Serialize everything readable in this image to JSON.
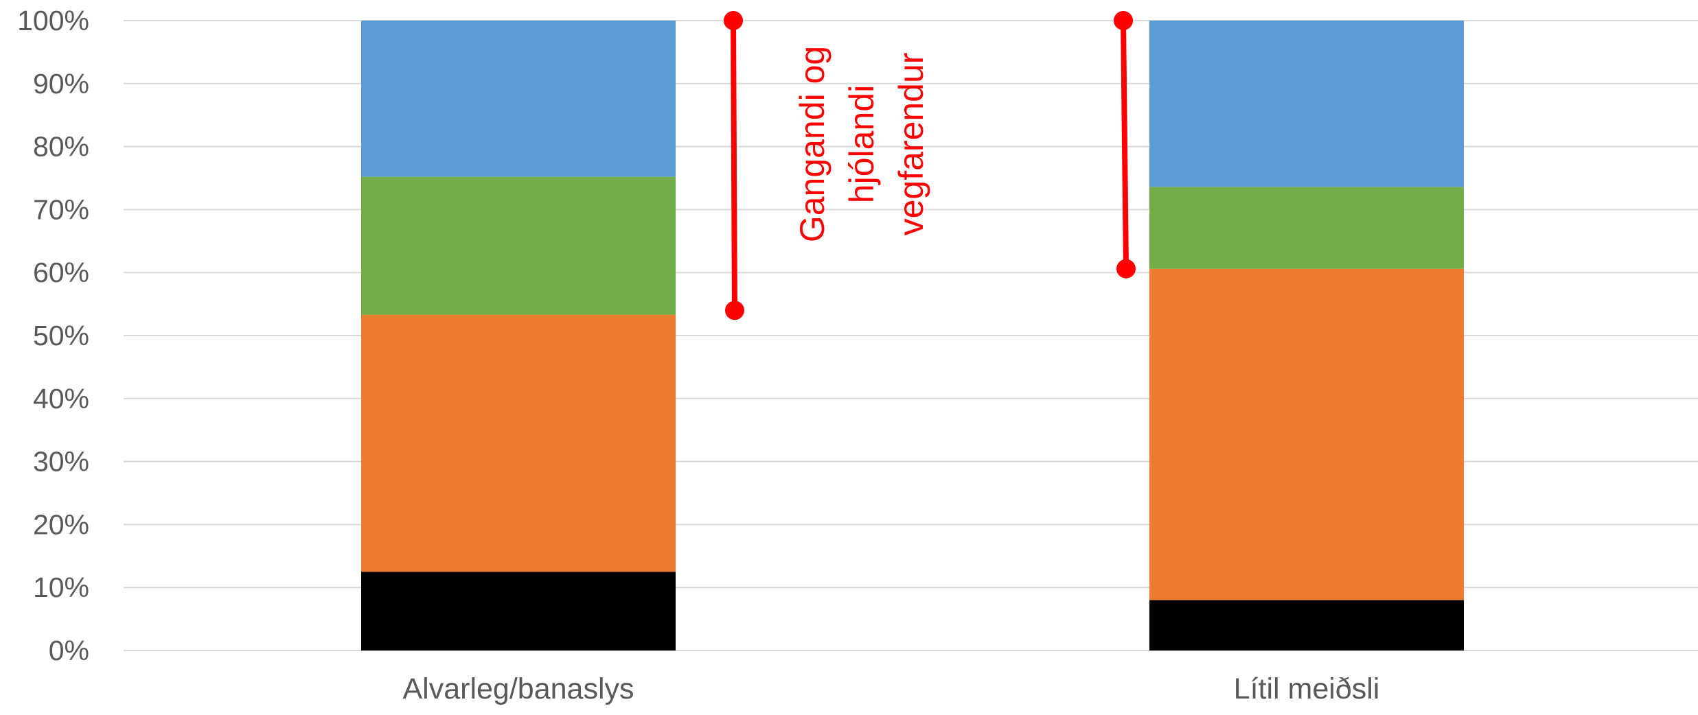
{
  "chart_data": {
    "type": "bar",
    "stacked": true,
    "percent_axis": true,
    "categories": [
      "Alvarleg/banaslys",
      "Lítil meiðsli"
    ],
    "series": [
      {
        "color": "#000000",
        "values": [
          12.5,
          8
        ]
      },
      {
        "color": "#ED7D31",
        "values": [
          40.8,
          52.6
        ]
      },
      {
        "color": "#70AD47",
        "values": [
          21.9,
          13
        ]
      },
      {
        "color": "#5B9BD5",
        "values": [
          24.8,
          26.4
        ]
      }
    ],
    "ylim": [
      0,
      100
    ],
    "yticks": [
      "0%",
      "10%",
      "20%",
      "30%",
      "40%",
      "50%",
      "60%",
      "70%",
      "80%",
      "90%",
      "100%"
    ],
    "grid": true,
    "legend": "none",
    "annotations": {
      "text_lines": [
        "Gangandi og",
        "hjólandi",
        "vegfarendur"
      ],
      "color": "#FF0000",
      "brackets": [
        {
          "category": "Alvarleg/banaslys",
          "from": 100,
          "to": 54
        },
        {
          "category": "Lítil meiðsli",
          "from": 100,
          "to": 60.6
        }
      ]
    }
  }
}
